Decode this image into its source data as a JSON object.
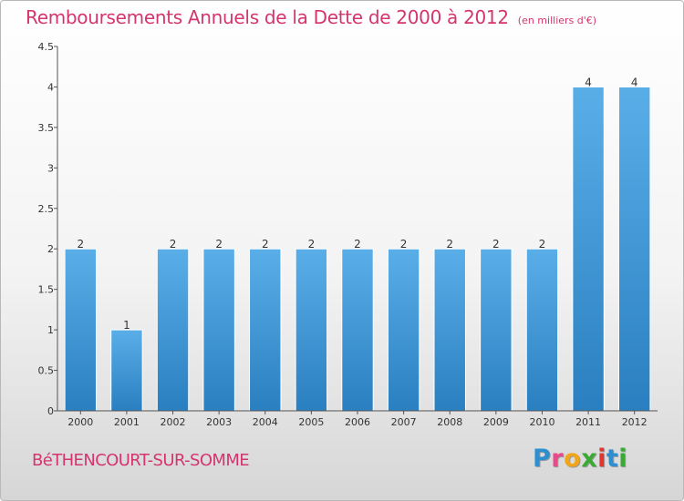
{
  "header": {
    "title": "Remboursements Annuels de la Dette de 2000 à 2012",
    "unit": "(en milliers d'€)"
  },
  "footer": {
    "commune": "BéTHENCOURT-SUR-SOMME",
    "logo_letters": [
      "P",
      "r",
      "o",
      "x",
      "i",
      "t",
      "i"
    ],
    "logo_colors": [
      "#2e8fd0",
      "#e94b8a",
      "#f2a51a",
      "#3aaa35",
      "#e3342f",
      "#2e8fd0",
      "#3aaa35"
    ]
  },
  "chart_data": {
    "type": "bar",
    "title": "Remboursements Annuels de la Dette de 2000 à 2012",
    "xlabel": "",
    "ylabel": "",
    "categories": [
      "2000",
      "2001",
      "2002",
      "2003",
      "2004",
      "2005",
      "2006",
      "2007",
      "2008",
      "2009",
      "2010",
      "2011",
      "2012"
    ],
    "values": [
      2,
      1,
      2,
      2,
      2,
      2,
      2,
      2,
      2,
      2,
      2,
      4,
      4
    ],
    "value_labels": [
      "2",
      "1",
      "2",
      "2",
      "2",
      "2",
      "2",
      "2",
      "2",
      "2",
      "2",
      "4",
      "4"
    ],
    "ylim": [
      0,
      4.5
    ],
    "yticks": [
      0,
      0.5,
      1,
      1.5,
      2,
      2.5,
      3,
      3.5,
      4,
      4.5
    ],
    "ytick_labels": [
      "0",
      "0.5",
      "1",
      "1.5",
      "2",
      "2.5",
      "3",
      "3.5",
      "4",
      "4.5"
    ],
    "bar_color_top": "#5aaee8",
    "bar_color_bottom": "#2a7fc0",
    "grid": false,
    "legend": "none"
  }
}
